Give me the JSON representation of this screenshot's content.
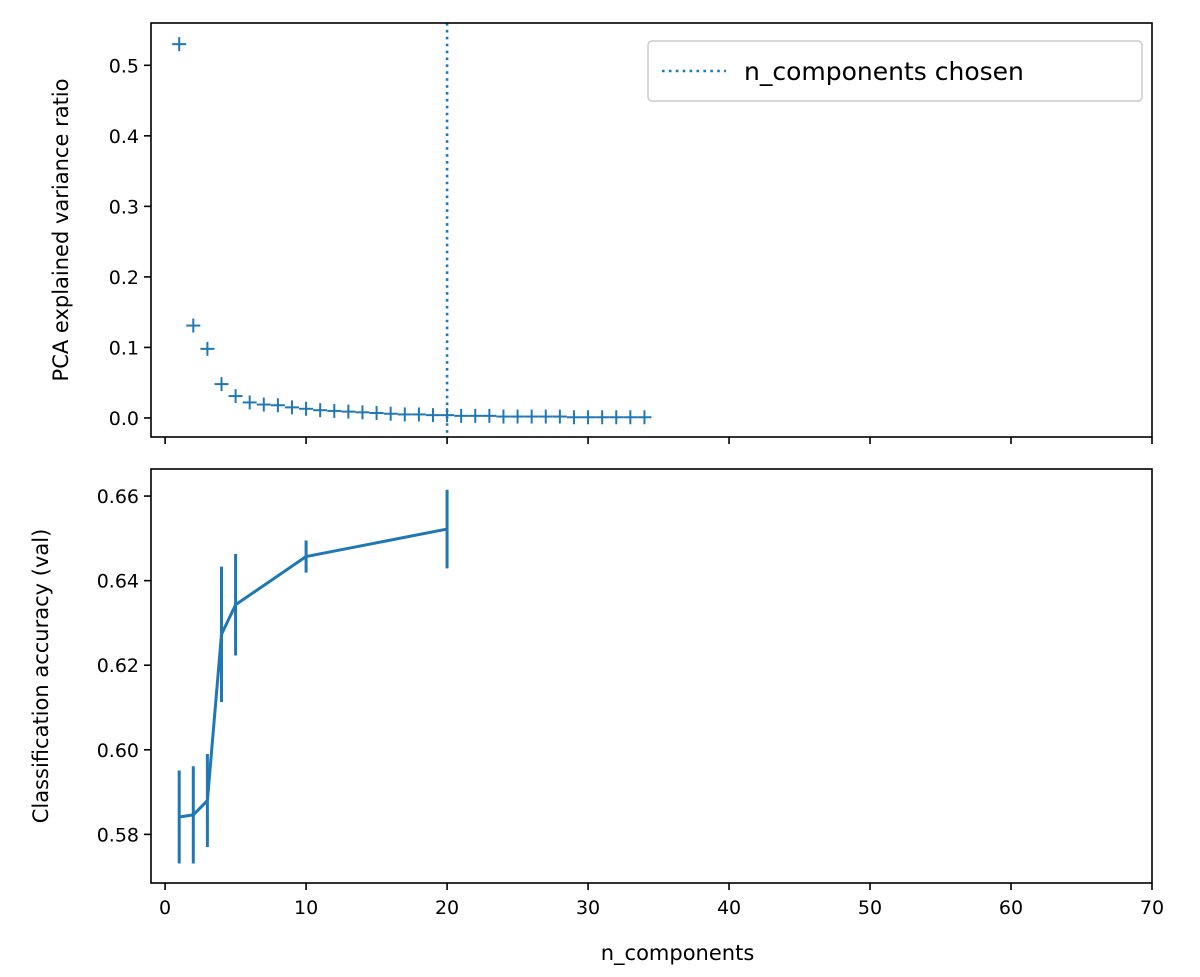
{
  "chart_data": [
    {
      "type": "scatter",
      "title": "",
      "xlabel": "",
      "ylabel": "PCA explained variance ratio",
      "xlim": [
        -1,
        70
      ],
      "ylim": [
        -0.027,
        0.56
      ],
      "x_ticks": [
        0,
        10,
        20,
        30,
        40,
        50,
        60,
        70
      ],
      "x_tick_labels_visible": false,
      "y_ticks": [
        0.0,
        0.1,
        0.2,
        0.3,
        0.4,
        0.5
      ],
      "y_tick_labels": [
        "0.0",
        "0.1",
        "0.2",
        "0.3",
        "0.4",
        "0.5"
      ],
      "marker": "+",
      "color": "#1f77b4",
      "grid": false,
      "series": [
        {
          "x": [
            1,
            2,
            3,
            4,
            5,
            6,
            7,
            8,
            9,
            10,
            11,
            12,
            13,
            14,
            15,
            16,
            17,
            18,
            19,
            20,
            21,
            22,
            23,
            24,
            25,
            26,
            27,
            28,
            29,
            30,
            31,
            32,
            33,
            34
          ],
          "values": [
            0.53,
            0.131,
            0.098,
            0.048,
            0.031,
            0.022,
            0.019,
            0.018,
            0.015,
            0.013,
            0.011,
            0.01,
            0.009,
            0.008,
            0.007,
            0.006,
            0.005,
            0.005,
            0.004,
            0.004,
            0.003,
            0.003,
            0.003,
            0.002,
            0.002,
            0.002,
            0.002,
            0.002,
            0.001,
            0.001,
            0.001,
            0.001,
            0.001,
            0.001
          ]
        }
      ],
      "vline": {
        "x": 20,
        "style": "dotted",
        "label": "n_components chosen",
        "color": "#1f77b4"
      },
      "legend": {
        "placement": "top-right",
        "entries": [
          "n_components chosen"
        ]
      }
    },
    {
      "type": "line",
      "title": "",
      "xlabel": "n_components",
      "ylabel": "Classification accuracy (val)",
      "xlim": [
        -1,
        70
      ],
      "ylim": [
        0.5685,
        0.6664
      ],
      "x_ticks": [
        0,
        10,
        20,
        30,
        40,
        50,
        60,
        70
      ],
      "x_tick_labels": [
        "0",
        "10",
        "20",
        "30",
        "40",
        "50",
        "60",
        "70"
      ],
      "y_ticks": [
        0.58,
        0.6,
        0.62,
        0.64,
        0.66
      ],
      "y_tick_labels": [
        "0.58",
        "0.60",
        "0.62",
        "0.64",
        "0.66"
      ],
      "color": "#1f77b4",
      "grid": false,
      "series": [
        {
          "x": [
            1,
            2,
            3,
            4,
            5,
            10,
            20
          ],
          "values": [
            0.5841,
            0.5846,
            0.588,
            0.6273,
            0.6343,
            0.6457,
            0.6522
          ],
          "errors": [
            0.011,
            0.0115,
            0.011,
            0.016,
            0.012,
            0.0038,
            0.0093
          ]
        }
      ]
    }
  ]
}
